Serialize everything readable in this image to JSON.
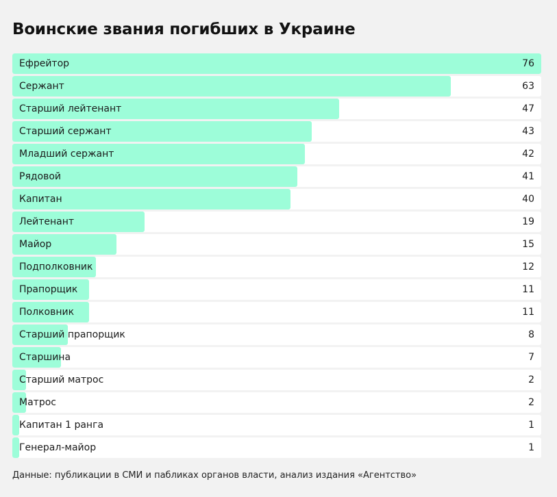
{
  "chart_data": {
    "type": "bar",
    "orientation": "horizontal",
    "title": "Воинские звания погибших в Украине",
    "xlabel": "",
    "ylabel": "",
    "xlim": [
      0,
      76
    ],
    "grid": false,
    "bar_color": "#9dfdd9",
    "track_color": "#ffffff",
    "categories": [
      "Ефрейтор",
      "Сержант",
      "Старший лейтенант",
      "Старший сержант",
      "Младший сержант",
      "Рядовой",
      "Капитан",
      "Лейтенант",
      "Майор",
      "Подполковник",
      "Прапорщик",
      "Полковник",
      "Старший прапорщик",
      "Старшина",
      "Старший матрос",
      "Матрос",
      "Капитан 1 ранга",
      "Генерал-майор"
    ],
    "values": [
      76,
      63,
      47,
      43,
      42,
      41,
      40,
      19,
      15,
      12,
      11,
      11,
      8,
      7,
      2,
      2,
      1,
      1
    ]
  },
  "source": "Данные: публикации в СМИ и пабликах органов власти, анализ издания «Агентство»"
}
